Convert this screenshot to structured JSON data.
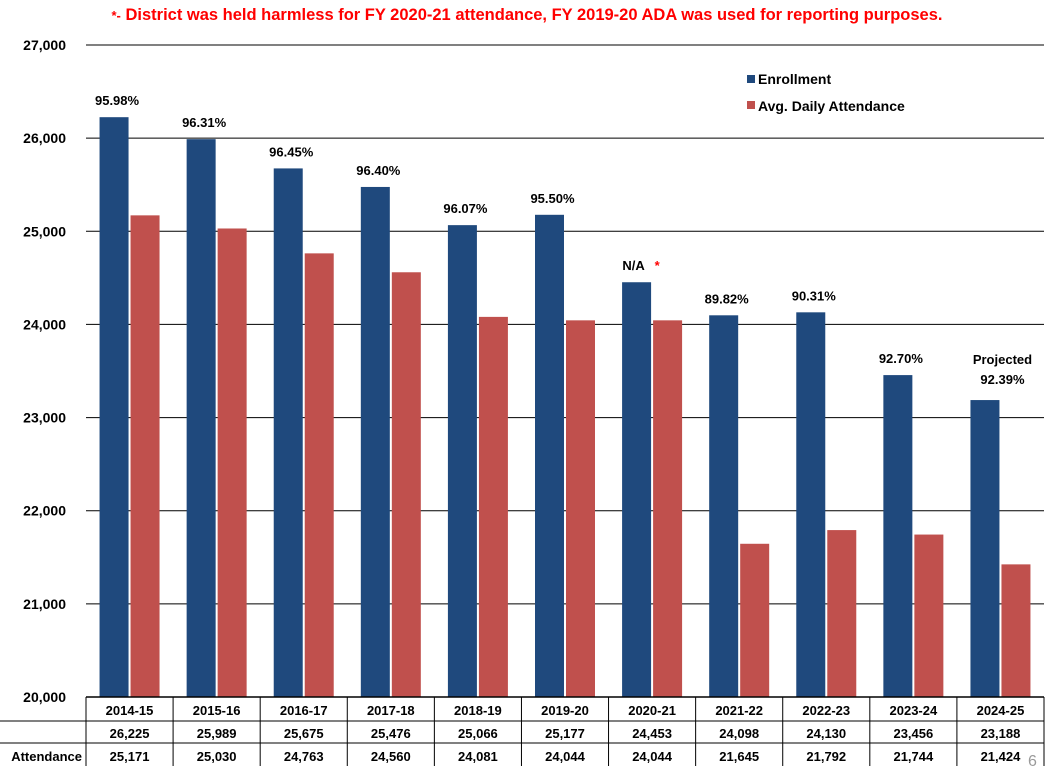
{
  "note": {
    "star": "*-",
    "text": " District was held harmless for FY 2020-21 attendance, FY 2019-20 ADA was used for reporting purposes."
  },
  "legend": {
    "enrollment": "Enrollment",
    "ada": "Avg. Daily Attendance"
  },
  "page_number": "6",
  "chart_data": {
    "type": "bar",
    "categories": [
      "2014-15",
      "2015-16",
      "2016-17",
      "2017-18",
      "2018-19",
      "2019-20",
      "2020-21",
      "2021-22",
      "2022-23",
      "2023-24",
      "2024-25"
    ],
    "series": [
      {
        "name": "Enrollment",
        "color": "#1f497d",
        "values": [
          26225,
          25989,
          25675,
          25476,
          25066,
          25177,
          24453,
          24098,
          24130,
          23456,
          23188
        ],
        "labels": [
          "26,225",
          "25,989",
          "25,675",
          "25,476",
          "25,066",
          "25,177",
          "24,453",
          "24,098",
          "24,130",
          "23,456",
          "23,188"
        ]
      },
      {
        "name": "Avg. Daily Attendance",
        "color": "#c0504d",
        "values": [
          25171,
          25030,
          24763,
          24560,
          24081,
          24044,
          24044,
          21645,
          21792,
          21744,
          21424
        ],
        "labels": [
          "25,171",
          "25,030",
          "24,763",
          "24,560",
          "24,081",
          "24,044",
          "24,044",
          "21,645",
          "21,792",
          "21,744",
          "21,424"
        ]
      }
    ],
    "annotations": [
      "95.98%",
      "96.31%",
      "96.45%",
      "96.40%",
      "96.07%",
      "95.50%",
      "N/A",
      "89.82%",
      "90.31%",
      "92.70%",
      "92.39%"
    ],
    "annotation_marks": {
      "6": "*"
    },
    "annotation_prefix": {
      "10": "Projected"
    },
    "ylim": [
      20000,
      27000
    ],
    "yticks": [
      "20,000",
      "21,000",
      "22,000",
      "23,000",
      "24,000",
      "25,000",
      "26,000",
      "27,000"
    ],
    "table_row_label": "Attendance",
    "grid": true,
    "legend_position": "top-right"
  }
}
